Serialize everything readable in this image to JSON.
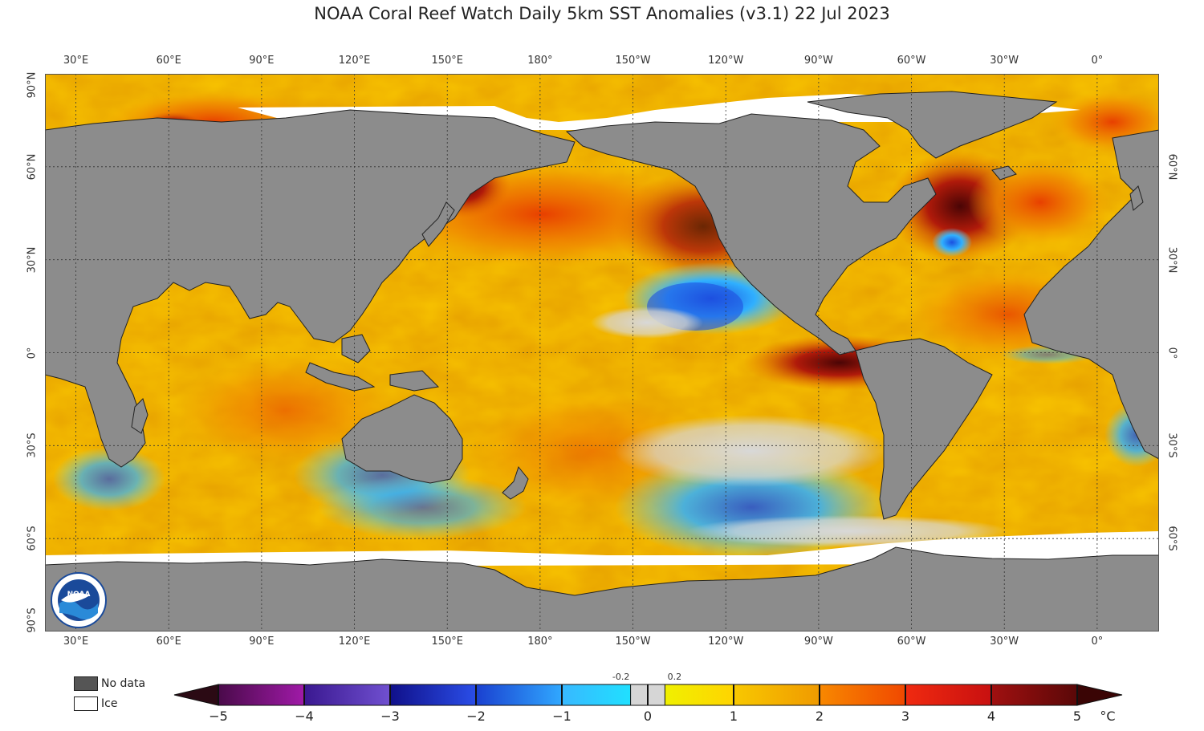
{
  "title": "NOAA Coral Reef Watch Daily 5km SST Anomalies  (v3.1)   22 Jul 2023",
  "map": {
    "land_color": "#8c8c8c",
    "ice_color": "#ffffff",
    "lon_ticks": [
      {
        "label": "30°E",
        "lon": 30
      },
      {
        "label": "60°E",
        "lon": 60
      },
      {
        "label": "90°E",
        "lon": 90
      },
      {
        "label": "120°E",
        "lon": 120
      },
      {
        "label": "150°E",
        "lon": 150
      },
      {
        "label": "180°",
        "lon": 180
      },
      {
        "label": "150°W",
        "lon": 210
      },
      {
        "label": "120°W",
        "lon": 240
      },
      {
        "label": "90°W",
        "lon": 270
      },
      {
        "label": "60°W",
        "lon": 300
      },
      {
        "label": "30°W",
        "lon": 330
      },
      {
        "label": "0°",
        "lon": 360
      }
    ],
    "lat_ticks": [
      {
        "label": "90°N",
        "lat": 90
      },
      {
        "label": "60°N",
        "lat": 60
      },
      {
        "label": "30°N",
        "lat": 30
      },
      {
        "label": "0°",
        "lat": 0
      },
      {
        "label": "30°S",
        "lat": -30
      },
      {
        "label": "60°S",
        "lat": -60
      },
      {
        "label": "90°S",
        "lat": -90
      }
    ],
    "right_lat_ticks": [
      {
        "label": "60°N",
        "lat": 60
      },
      {
        "label": "30°N",
        "lat": 30
      },
      {
        "label": "0°",
        "lat": 0
      },
      {
        "label": "30°S",
        "lat": -30
      },
      {
        "label": "60°S",
        "lat": -60
      }
    ]
  },
  "legend_key": {
    "no_data": {
      "label": "No data",
      "color": "#555555"
    },
    "ice": {
      "label": "Ice",
      "color": "#ffffff"
    }
  },
  "colorbar": {
    "unit": "°C",
    "range": [
      -5,
      5
    ],
    "tick_labels": [
      "−5",
      "−4",
      "−3",
      "−2",
      "−1",
      "0",
      "1",
      "2",
      "3",
      "4",
      "5"
    ],
    "near_zero_labels": [
      "-0.2",
      "0.2"
    ],
    "below_color": "#2b0a14",
    "above_color": "#3a0505",
    "segments": [
      {
        "from": -5,
        "to": -4,
        "c1": "#4a0a4a",
        "c2": "#a01aa8"
      },
      {
        "from": -4,
        "to": -3,
        "c1": "#3a1890",
        "c2": "#7050d0"
      },
      {
        "from": -3,
        "to": -2,
        "c1": "#10108a",
        "c2": "#2a4ee8"
      },
      {
        "from": -2,
        "to": -1,
        "c1": "#1a40d0",
        "c2": "#30a8ff"
      },
      {
        "from": -1,
        "to": -0.2,
        "c1": "#38b8ff",
        "c2": "#20e0ff"
      },
      {
        "from": -0.2,
        "to": 0.2,
        "c1": "#d6d6d6",
        "c2": "#d6d6d6"
      },
      {
        "from": 0.2,
        "to": 1,
        "c1": "#f0f000",
        "c2": "#ffd400"
      },
      {
        "from": 1,
        "to": 2,
        "c1": "#f8c800",
        "c2": "#f09a00"
      },
      {
        "from": 2,
        "to": 3,
        "c1": "#f88800",
        "c2": "#f04800"
      },
      {
        "from": 3,
        "to": 4,
        "c1": "#f02a10",
        "c2": "#c81010"
      },
      {
        "from": 4,
        "to": 5,
        "c1": "#a01010",
        "c2": "#5a0808"
      }
    ]
  },
  "logo": {
    "text": "NOAA",
    "color": "#1a4a9a",
    "accent": "#2a8ad8"
  }
}
